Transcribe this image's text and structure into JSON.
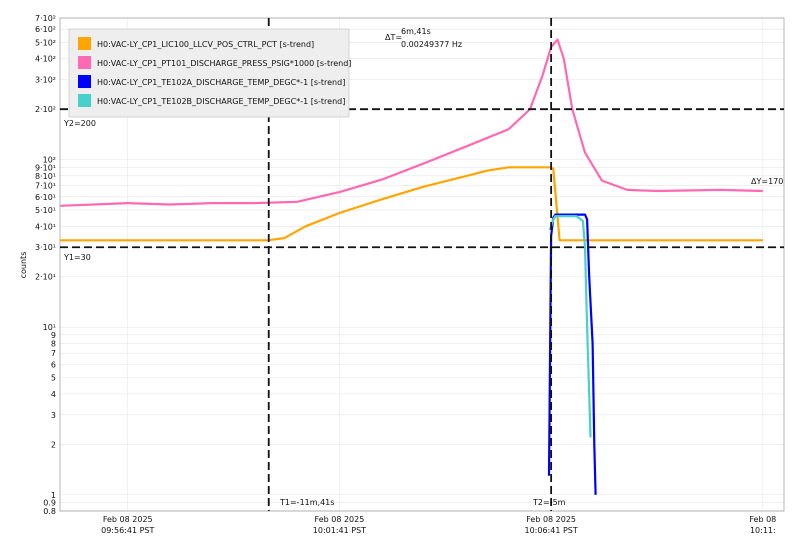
{
  "chart_data": {
    "type": "line",
    "ylabel": "counts",
    "y_scale": "log",
    "ylim": [
      0.8,
      700
    ],
    "grid": true,
    "legend_position": "top-left",
    "x_ticks": [
      {
        "t": 0,
        "l1": "Feb 08 2025",
        "l2": "09:56:41 PST"
      },
      {
        "t": 5,
        "l1": "Feb 08 2025",
        "l2": "10:01:41 PST"
      },
      {
        "t": 10,
        "l1": "Feb 08 2025",
        "l2": "10:06:41 PST"
      },
      {
        "t": 15,
        "l1": "Feb 08",
        "l2": "10:11:"
      }
    ],
    "x_range": [
      -1.6,
      15.5
    ],
    "y_ticks": [
      {
        "v": 700,
        "label": "7·10²"
      },
      {
        "v": 600,
        "label": "6·10²"
      },
      {
        "v": 500,
        "label": "5·10²"
      },
      {
        "v": 400,
        "label": "4·10²"
      },
      {
        "v": 300,
        "label": "3·10²"
      },
      {
        "v": 200,
        "label": "2·10²"
      },
      {
        "v": 100,
        "label": "10²"
      },
      {
        "v": 90,
        "label": "9·10¹"
      },
      {
        "v": 80,
        "label": "8·10¹"
      },
      {
        "v": 70,
        "label": "7·10¹"
      },
      {
        "v": 60,
        "label": "6·10¹"
      },
      {
        "v": 50,
        "label": "5·10¹"
      },
      {
        "v": 40,
        "label": "4·10¹"
      },
      {
        "v": 30,
        "label": "3·10¹"
      },
      {
        "v": 20,
        "label": "2·10¹"
      },
      {
        "v": 10,
        "label": "10¹"
      },
      {
        "v": 9,
        "label": "9"
      },
      {
        "v": 8,
        "label": "8"
      },
      {
        "v": 7,
        "label": "7"
      },
      {
        "v": 6,
        "label": "6"
      },
      {
        "v": 5,
        "label": "5"
      },
      {
        "v": 4,
        "label": "4"
      },
      {
        "v": 3,
        "label": "3"
      },
      {
        "v": 2,
        "label": "2"
      },
      {
        "v": 1,
        "label": "1"
      },
      {
        "v": 0.9,
        "label": "0.9"
      },
      {
        "v": 0.8,
        "label": "0.8"
      }
    ],
    "series": [
      {
        "name": "H0:VAC-LY_CP1_LIC100_LLCV_POS_CTRL_PCT [s-trend]",
        "color": "#ffa500",
        "points": [
          [
            -1.6,
            33
          ],
          [
            3.3,
            33
          ],
          [
            3.7,
            34
          ],
          [
            4.2,
            40
          ],
          [
            5,
            48
          ],
          [
            6,
            58
          ],
          [
            7,
            69
          ],
          [
            8,
            80
          ],
          [
            8.5,
            86
          ],
          [
            9,
            90
          ],
          [
            10,
            90
          ],
          [
            10.05,
            88
          ],
          [
            10.2,
            33
          ],
          [
            15,
            33
          ]
        ]
      },
      {
        "name": "H0:VAC-LY_CP1_PT101_DISCHARGE_PRESS_PSIG*1000 [s-trend]",
        "color": "#ff69b4",
        "points": [
          [
            -1.6,
            53
          ],
          [
            0,
            55
          ],
          [
            1,
            54
          ],
          [
            2,
            55
          ],
          [
            3,
            55
          ],
          [
            4,
            56
          ],
          [
            5,
            64
          ],
          [
            6,
            76
          ],
          [
            7,
            95
          ],
          [
            8,
            120
          ],
          [
            9,
            152
          ],
          [
            9.5,
            200
          ],
          [
            9.8,
            320
          ],
          [
            10,
            470
          ],
          [
            10.15,
            520
          ],
          [
            10.3,
            400
          ],
          [
            10.5,
            200
          ],
          [
            10.8,
            110
          ],
          [
            11.2,
            75
          ],
          [
            11.8,
            66
          ],
          [
            12.5,
            65
          ],
          [
            14,
            66
          ],
          [
            15,
            65
          ]
        ]
      },
      {
        "name": "H0:VAC-LY_CP1_TE102A_DISCHARGE_TEMP_DEGC*-1 [s-trend]",
        "color": "#0000ff",
        "points": [
          [
            9.95,
            1.3
          ],
          [
            10.0,
            35
          ],
          [
            10.05,
            45
          ],
          [
            10.1,
            47
          ],
          [
            10.8,
            47
          ],
          [
            10.85,
            44
          ],
          [
            10.9,
            20
          ],
          [
            10.98,
            8
          ],
          [
            11.02,
            2
          ],
          [
            11.05,
            1
          ]
        ]
      },
      {
        "name": "H0:VAC-LY_CP1_TE102B_DISCHARGE_TEMP_DEGC*-1 [s-trend]",
        "color": "#48d1cc",
        "points": [
          [
            9.97,
            38
          ],
          [
            10.05,
            44
          ],
          [
            10.1,
            46
          ],
          [
            10.6,
            46
          ],
          [
            10.75,
            43
          ],
          [
            10.8,
            30
          ],
          [
            10.85,
            10
          ],
          [
            10.9,
            4
          ],
          [
            10.93,
            2.2
          ]
        ]
      }
    ],
    "cursors": {
      "t1_label": "T1=-11m,41s",
      "t2_label": "T2=-5m",
      "t1": 3.33,
      "t2": 10,
      "delta_t_label": "ΔT=",
      "delta_t_value": "6m,41s",
      "delta_t_freq": "0.00249377 Hz",
      "y1_label": "Y1=30",
      "y2_label": "Y2=200",
      "y1": 30,
      "y2": 200,
      "delta_y_label": "ΔY=170"
    }
  }
}
